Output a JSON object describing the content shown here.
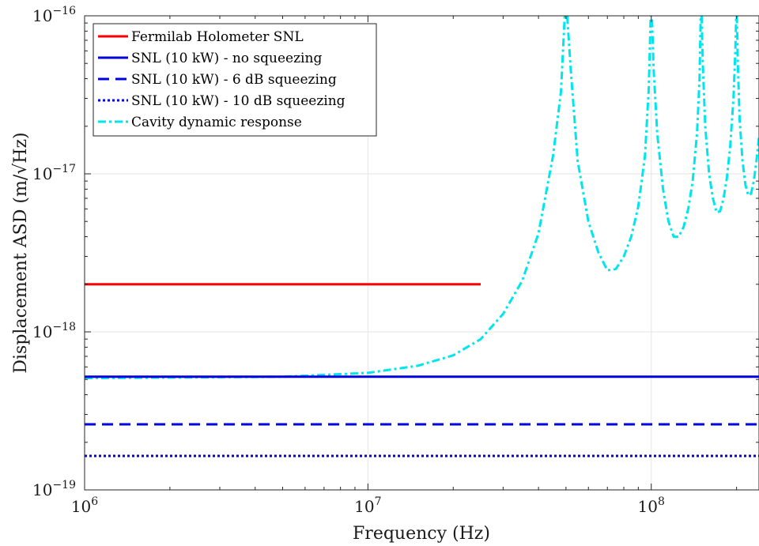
{
  "chart_data": {
    "type": "line",
    "xlabel": "Frequency (Hz)",
    "ylabel": "Displacement ASD (m/√Hz)",
    "x_scale": "log",
    "y_scale": "log",
    "xlim": [
      1000000,
      240000000
    ],
    "ylim": [
      1e-19,
      1e-16
    ],
    "grid": true,
    "legend_position": "top-left",
    "x_ticks": [
      {
        "value": 1000000,
        "base": "10",
        "exp": "6"
      },
      {
        "value": 10000000,
        "base": "10",
        "exp": "7"
      },
      {
        "value": 100000000,
        "base": "10",
        "exp": "8"
      }
    ],
    "y_ticks": [
      {
        "value": 1e-19,
        "base": "10",
        "exp": "−19"
      },
      {
        "value": 1e-18,
        "base": "10",
        "exp": "−18"
      },
      {
        "value": 1e-17,
        "base": "10",
        "exp": "−17"
      },
      {
        "value": 1e-16,
        "base": "10",
        "exp": "−16"
      }
    ],
    "series": [
      {
        "name": "Fermilab Holometer SNL",
        "color": "#ff0000",
        "style": "solid",
        "x": [
          1000000,
          25000000
        ],
        "y": [
          2e-18,
          2e-18
        ]
      },
      {
        "name": "SNL (10 kW) - no squeezing",
        "color": "#0000dd",
        "style": "solid",
        "x": [
          1000000,
          240000000
        ],
        "y": [
          5.2e-19,
          5.2e-19
        ]
      },
      {
        "name": "SNL (10 kW) - 6 dB squeezing",
        "color": "#0000dd",
        "style": "dashed",
        "x": [
          1000000,
          240000000
        ],
        "y": [
          2.6e-19,
          2.6e-19
        ]
      },
      {
        "name": "SNL (10 kW) - 10 dB squeezing",
        "color": "#0000dd",
        "style": "dotted",
        "x": [
          1000000,
          240000000
        ],
        "y": [
          1.64e-19,
          1.64e-19
        ]
      },
      {
        "name": "Cavity dynamic response",
        "color": "#00e5ee",
        "style": "dashdot",
        "x": [
          1000000,
          5000000,
          10000000,
          15000000,
          20000000,
          25000000,
          30000000,
          35000000,
          40000000,
          45000000,
          48000000,
          49500000,
          50000000,
          50500000,
          52000000,
          55000000,
          60000000,
          65000000,
          70000000,
          75000000,
          80000000,
          85000000,
          90000000,
          95000000,
          98000000,
          99500000,
          100000000,
          100500000,
          102000000,
          105000000,
          110000000,
          115000000,
          120000000,
          125000000,
          130000000,
          135000000,
          140000000,
          145000000,
          148000000,
          149500000,
          150000000,
          150500000,
          152000000,
          155000000,
          160000000,
          165000000,
          170000000,
          175000000,
          180000000,
          185000000,
          190000000,
          195000000,
          198000000,
          199500000,
          200000000,
          200500000,
          202000000,
          205000000,
          210000000,
          215000000,
          220000000,
          225000000,
          230000000,
          235000000,
          240000000
        ],
        "y": [
          5.1e-19,
          5.2e-19,
          5.5e-19,
          6.1e-19,
          7.1e-19,
          9e-19,
          1.3e-18,
          2.1e-18,
          4.2e-18,
          1.3e-17,
          3.3e-17,
          1e-16,
          1e-16,
          1e-16,
          4.5e-17,
          1.2e-17,
          5e-18,
          3.2e-18,
          2.45e-18,
          2.5e-18,
          3e-18,
          4e-18,
          6.2e-18,
          1.3e-17,
          3.5e-17,
          1e-16,
          1e-16,
          1e-16,
          4.5e-17,
          1.8e-17,
          8e-18,
          5e-18,
          4e-18,
          4e-18,
          4.6e-18,
          6e-18,
          9e-18,
          1.8e-17,
          4e-17,
          1e-16,
          1e-16,
          1e-16,
          5e-17,
          2e-17,
          1e-17,
          7e-18,
          5.7e-18,
          5.8e-18,
          7e-18,
          9.5e-18,
          1.5e-17,
          3e-17,
          6e-17,
          1e-16,
          1e-16,
          1e-16,
          5e-17,
          2.2e-17,
          1.2e-17,
          8.5e-18,
          7.3e-18,
          7.5e-18,
          9e-18,
          1.2e-17,
          1.7e-17
        ]
      }
    ]
  }
}
